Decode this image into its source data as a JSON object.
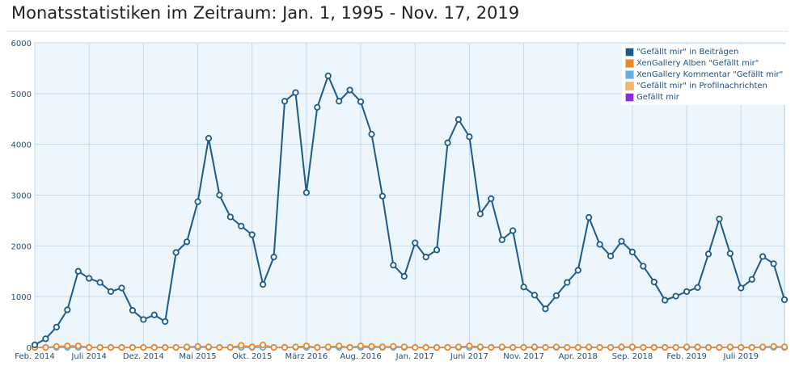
{
  "title": "Monatsstatistiken im Zeitraum: Jan. 1, 1995 - Nov. 17, 2019",
  "chart_data": {
    "type": "line",
    "title": "Monatsstatistiken im Zeitraum: Jan. 1, 1995 - Nov. 17, 2019",
    "xlabel": "",
    "ylabel": "",
    "ylim": [
      0,
      6000
    ],
    "yticks": [
      "0",
      "1000",
      "2000",
      "3000",
      "4000",
      "5000",
      "6000"
    ],
    "grid": true,
    "legend_position": "top-right",
    "x_tick_labels": [
      {
        "label": "Feb. 2014",
        "index": 0
      },
      {
        "label": "Juli 2014",
        "index": 5
      },
      {
        "label": "Dez. 2014",
        "index": 10
      },
      {
        "label": "Mai 2015",
        "index": 15
      },
      {
        "label": "Okt. 2015",
        "index": 20
      },
      {
        "label": "März 2016",
        "index": 25
      },
      {
        "label": "Aug. 2016",
        "index": 30
      },
      {
        "label": "Jan. 2017",
        "index": 35
      },
      {
        "label": "Juni 2017",
        "index": 40
      },
      {
        "label": "Nov. 2017",
        "index": 45
      },
      {
        "label": "Apr. 2018",
        "index": 50
      },
      {
        "label": "Sep. 2018",
        "index": 55
      },
      {
        "label": "Feb. 2019",
        "index": 60
      },
      {
        "label": "Juli 2019",
        "index": 65
      }
    ],
    "categories": [
      "Feb. 2014",
      "Mar. 2014",
      "Apr. 2014",
      "Mai 2014",
      "Juni 2014",
      "Juli 2014",
      "Aug. 2014",
      "Sep. 2014",
      "Okt. 2014",
      "Nov. 2014",
      "Dez. 2014",
      "Jan. 2015",
      "Feb. 2015",
      "März 2015",
      "Apr. 2015",
      "Mai 2015",
      "Juni 2015",
      "Juli 2015",
      "Aug. 2015",
      "Sep. 2015",
      "Okt. 2015",
      "Nov. 2015",
      "Dez. 2015",
      "Jan. 2016",
      "Feb. 2016",
      "März 2016",
      "Apr. 2016",
      "Mai 2016",
      "Juni 2016",
      "Juli 2016",
      "Aug. 2016",
      "Sep. 2016",
      "Okt. 2016",
      "Nov. 2016",
      "Dez. 2016",
      "Jan. 2017",
      "Feb. 2017",
      "März 2017",
      "Apr. 2017",
      "Mai 2017",
      "Juni 2017",
      "Juli 2017",
      "Aug. 2017",
      "Sep. 2017",
      "Okt. 2017",
      "Nov. 2017",
      "Dez. 2017",
      "Jan. 2018",
      "Feb. 2018",
      "März 2018",
      "Apr. 2018",
      "Mai 2018",
      "Juni 2018",
      "Juli 2018",
      "Aug. 2018",
      "Sep. 2018",
      "Okt. 2018",
      "Nov. 2018",
      "Dez. 2018",
      "Jan. 2019",
      "Feb. 2019",
      "März 2019",
      "Apr. 2019",
      "Mai 2019",
      "Juni 2019",
      "Juli 2019",
      "Aug. 2019",
      "Sep. 2019",
      "Okt. 2019",
      "Nov. 2019"
    ],
    "series": [
      {
        "name": "\"Gefällt mir\" in Beiträgen",
        "color": "#1d5a87",
        "values": [
          50,
          170,
          400,
          740,
          1500,
          1360,
          1280,
          1100,
          1170,
          730,
          550,
          640,
          510,
          1870,
          2080,
          2870,
          4120,
          3000,
          2570,
          2390,
          2220,
          1240,
          1780,
          4850,
          5020,
          3050,
          4730,
          5350,
          4850,
          5070,
          4840,
          4200,
          2980,
          1620,
          1400,
          2060,
          1780,
          1920,
          4030,
          4490,
          4150,
          2630,
          2930,
          2120,
          2300,
          1190,
          1030,
          760,
          1020,
          1280,
          1520,
          2560,
          2030,
          1800,
          2090,
          1880,
          1600,
          1290,
          930,
          1010,
          1100,
          1180,
          1840,
          2530,
          1850,
          1170,
          1340,
          1790,
          1650,
          940
        ]
      },
      {
        "name": "XenGallery Alben \"Gefällt mir\"",
        "color": "#e8872e",
        "values": [
          0,
          0,
          20,
          30,
          30,
          0,
          0,
          0,
          0,
          0,
          0,
          0,
          0,
          0,
          10,
          20,
          10,
          0,
          0,
          40,
          10,
          50,
          0,
          0,
          10,
          30,
          0,
          10,
          30,
          0,
          30,
          20,
          10,
          20,
          10,
          0,
          0,
          0,
          0,
          10,
          30,
          10,
          0,
          10,
          0,
          0,
          10,
          0,
          10,
          0,
          0,
          10,
          0,
          0,
          10,
          10,
          0,
          0,
          0,
          0,
          10,
          10,
          0,
          0,
          10,
          0,
          0,
          10,
          20,
          10
        ]
      },
      {
        "name": "XenGallery Kommentar \"Gefällt mir\"",
        "color": "#6aaee0",
        "values": [
          0,
          0,
          0,
          0,
          0,
          0,
          0,
          0,
          0,
          0,
          0,
          0,
          0,
          0,
          0,
          0,
          0,
          0,
          0,
          0,
          0,
          0,
          0,
          0,
          0,
          0,
          0,
          0,
          0,
          0,
          0,
          0,
          0,
          0,
          0,
          0,
          0,
          0,
          0,
          0,
          0,
          0,
          0,
          0,
          0,
          0,
          0,
          0,
          0,
          0,
          0,
          0,
          0,
          0,
          0,
          0,
          0,
          0,
          0,
          0,
          0,
          0,
          0,
          0,
          0,
          0,
          0,
          0,
          0,
          0
        ]
      },
      {
        "name": "\"Gefällt mir\" in Profilnachrichten",
        "color": "#f2b66e",
        "values": [
          0,
          0,
          0,
          0,
          0,
          0,
          0,
          0,
          0,
          0,
          0,
          0,
          0,
          0,
          0,
          0,
          0,
          0,
          0,
          0,
          0,
          0,
          0,
          0,
          0,
          0,
          0,
          0,
          0,
          0,
          0,
          0,
          0,
          0,
          0,
          0,
          0,
          0,
          0,
          0,
          0,
          0,
          0,
          0,
          0,
          0,
          0,
          0,
          0,
          0,
          0,
          0,
          0,
          0,
          0,
          0,
          0,
          0,
          0,
          0,
          0,
          0,
          0,
          0,
          0,
          0,
          0,
          0,
          0,
          0
        ]
      },
      {
        "name": "Gefällt mir",
        "color": "#8a2be2",
        "values": [
          null,
          null,
          null,
          null,
          null,
          null,
          null,
          null,
          null,
          null,
          null,
          null,
          null,
          null,
          null,
          null,
          null,
          null,
          null,
          null,
          null,
          null,
          null,
          null,
          null,
          null,
          null,
          null,
          null,
          null,
          null,
          null,
          null,
          null,
          null,
          null,
          null,
          0,
          0,
          null,
          null,
          null,
          null,
          null,
          null,
          null,
          null,
          null,
          null,
          null,
          null,
          null,
          null,
          null,
          null,
          null,
          null,
          null,
          null,
          null,
          null,
          null,
          null,
          null,
          null,
          null,
          null,
          null,
          null,
          null
        ]
      }
    ]
  }
}
